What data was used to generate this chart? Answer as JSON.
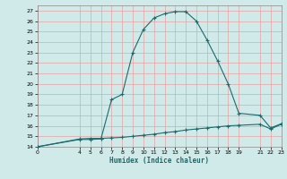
{
  "xlabel": "Humidex (Indice chaleur)",
  "bg_color": "#d0eaea",
  "grid_color": "#e8a0a0",
  "line_color": "#1a6b6b",
  "xlim": [
    0,
    23
  ],
  "ylim": [
    14,
    27.5
  ],
  "yticks": [
    14,
    15,
    16,
    17,
    18,
    19,
    20,
    21,
    22,
    23,
    24,
    25,
    26,
    27
  ],
  "xticks": [
    0,
    4,
    5,
    6,
    7,
    8,
    9,
    10,
    11,
    12,
    13,
    14,
    15,
    16,
    17,
    18,
    19,
    21,
    22,
    23
  ],
  "curve1_x": [
    0,
    4,
    5,
    6,
    7,
    8,
    9,
    10,
    11,
    12,
    13,
    14,
    15,
    16,
    17,
    18,
    19,
    21,
    22,
    23
  ],
  "curve1_y": [
    14.0,
    14.7,
    14.7,
    14.75,
    18.5,
    19.0,
    23.0,
    25.2,
    26.3,
    26.7,
    26.9,
    26.9,
    26.0,
    24.2,
    22.2,
    20.0,
    17.2,
    17.0,
    15.8,
    16.2
  ],
  "curve2_x": [
    0,
    4,
    5,
    6,
    7,
    8,
    9,
    10,
    11,
    12,
    13,
    14,
    15,
    16,
    17,
    18,
    19,
    21,
    22,
    23
  ],
  "curve2_y": [
    14.0,
    14.75,
    14.8,
    14.8,
    14.85,
    14.9,
    15.0,
    15.1,
    15.2,
    15.35,
    15.45,
    15.6,
    15.7,
    15.8,
    15.9,
    16.0,
    16.05,
    16.15,
    15.7,
    16.15
  ]
}
